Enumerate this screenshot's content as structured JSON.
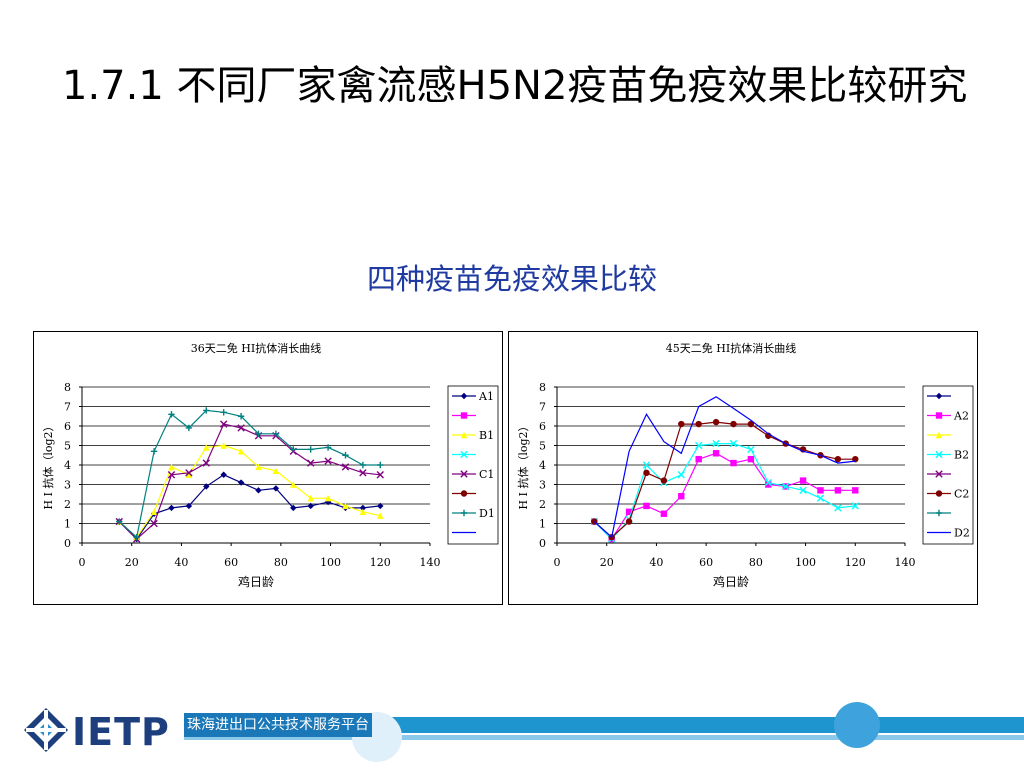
{
  "slide": {
    "title": "1.7.1  不同厂家禽流感H5N2疫苗免疫效果比较研究",
    "subtitle": "四种疫苗免疫效果比较"
  },
  "footer": {
    "logo": "IETP",
    "label": "珠海进出口公共技术服务平台"
  },
  "chart_data": [
    {
      "type": "line",
      "title": "36天二免 HI抗体消长曲线",
      "xlabel": "鸡日龄",
      "ylabel": "H I 抗体（log2）",
      "xlim": [
        0,
        140
      ],
      "ylim": [
        0,
        8
      ],
      "xticks": [
        0,
        20,
        40,
        60,
        80,
        100,
        120,
        140
      ],
      "yticks": [
        0,
        1,
        2,
        3,
        4,
        5,
        6,
        7,
        8
      ],
      "grid": "horizontal",
      "legend": "right",
      "legend_labels": [
        "A1",
        "",
        "B1",
        "",
        "C1",
        "",
        "D1",
        ""
      ],
      "series": [
        {
          "name": "A1",
          "color": "#000080",
          "marker": "diamond",
          "x": [
            15,
            22,
            29,
            36,
            43,
            50,
            57,
            64,
            71,
            78,
            85,
            92,
            99,
            106,
            113,
            120
          ],
          "y": [
            1.1,
            0.2,
            1.5,
            1.8,
            1.9,
            2.9,
            3.5,
            3.1,
            2.7,
            2.8,
            1.8,
            1.9,
            2.1,
            1.8,
            1.8,
            1.9
          ]
        },
        {
          "name": "",
          "color": "#ff00ff",
          "marker": "square",
          "x": [],
          "y": []
        },
        {
          "name": "B1",
          "color": "#ffff00",
          "marker": "triangle",
          "x": [
            15,
            22,
            29,
            36,
            43,
            50,
            57,
            64,
            71,
            78,
            85,
            92,
            99,
            106,
            113,
            120
          ],
          "y": [
            1.1,
            0.3,
            1.6,
            3.9,
            3.5,
            4.9,
            5.0,
            4.7,
            3.9,
            3.7,
            3.0,
            2.3,
            2.3,
            1.9,
            1.6,
            1.4
          ]
        },
        {
          "name": "",
          "color": "#00ffff",
          "marker": "x",
          "x": [],
          "y": []
        },
        {
          "name": "C1",
          "color": "#800080",
          "marker": "x",
          "x": [
            15,
            22,
            29,
            36,
            43,
            50,
            57,
            64,
            71,
            78,
            85,
            92,
            99,
            106,
            113,
            120
          ],
          "y": [
            1.1,
            0.2,
            1.0,
            3.5,
            3.6,
            4.1,
            6.1,
            5.9,
            5.5,
            5.5,
            4.7,
            4.1,
            4.2,
            3.9,
            3.6,
            3.5
          ]
        },
        {
          "name": "",
          "color": "#800000",
          "marker": "circle",
          "x": [],
          "y": []
        },
        {
          "name": "D1",
          "color": "#008080",
          "marker": "plus",
          "x": [
            15,
            22,
            29,
            36,
            43,
            50,
            57,
            64,
            71,
            78,
            85,
            92,
            99,
            106,
            113,
            120
          ],
          "y": [
            1.1,
            0.3,
            4.7,
            6.6,
            5.9,
            6.8,
            6.7,
            6.5,
            5.6,
            5.6,
            4.8,
            4.8,
            4.9,
            4.5,
            4.0,
            4.0
          ]
        },
        {
          "name": "",
          "color": "#0000ff",
          "marker": "none",
          "x": [],
          "y": []
        }
      ]
    },
    {
      "type": "line",
      "title": "45天二免 HI抗体消长曲线",
      "xlabel": "鸡日龄",
      "ylabel": "H I 抗体（log2）",
      "xlim": [
        0,
        140
      ],
      "ylim": [
        0,
        8
      ],
      "xticks": [
        0,
        20,
        40,
        60,
        80,
        100,
        120,
        140
      ],
      "yticks": [
        0,
        1,
        2,
        3,
        4,
        5,
        6,
        7,
        8
      ],
      "grid": "horizontal",
      "legend": "right",
      "legend_labels": [
        "",
        "A2",
        "",
        "B2",
        "",
        "C2",
        "",
        "D2"
      ],
      "series": [
        {
          "name": "",
          "color": "#000080",
          "marker": "diamond",
          "x": [],
          "y": []
        },
        {
          "name": "A2",
          "color": "#ff00ff",
          "marker": "square",
          "x": [
            15,
            22,
            29,
            36,
            43,
            50,
            57,
            64,
            71,
            78,
            85,
            92,
            99,
            106,
            113,
            120
          ],
          "y": [
            1.1,
            0.2,
            1.6,
            1.9,
            1.5,
            2.4,
            4.3,
            4.6,
            4.1,
            4.3,
            3.0,
            2.9,
            3.2,
            2.7,
            2.7,
            2.7
          ]
        },
        {
          "name": "",
          "color": "#ffff00",
          "marker": "triangle",
          "x": [],
          "y": []
        },
        {
          "name": "B2",
          "color": "#00ffff",
          "marker": "x",
          "x": [
            15,
            22,
            29,
            36,
            43,
            50,
            57,
            64,
            71,
            78,
            85,
            92,
            99,
            106,
            113,
            120
          ],
          "y": [
            1.1,
            0.2,
            1.2,
            4.0,
            3.1,
            3.5,
            5.0,
            5.1,
            5.1,
            4.8,
            3.1,
            2.9,
            2.7,
            2.3,
            1.8,
            1.9
          ]
        },
        {
          "name": "",
          "color": "#800080",
          "marker": "x",
          "x": [],
          "y": []
        },
        {
          "name": "C2",
          "color": "#800000",
          "marker": "circle",
          "x": [
            15,
            22,
            29,
            36,
            43,
            50,
            57,
            64,
            71,
            78,
            85,
            92,
            99,
            106,
            113,
            120
          ],
          "y": [
            1.1,
            0.3,
            1.1,
            3.6,
            3.2,
            6.1,
            6.1,
            6.2,
            6.1,
            6.1,
            5.5,
            5.1,
            4.8,
            4.5,
            4.3,
            4.3
          ]
        },
        {
          "name": "",
          "color": "#008080",
          "marker": "plus",
          "x": [],
          "y": []
        },
        {
          "name": "D2",
          "color": "#0000ff",
          "marker": "none",
          "x": [
            15,
            22,
            29,
            36,
            43,
            50,
            57,
            64,
            71,
            78,
            85,
            92,
            99,
            106,
            113,
            120
          ],
          "y": [
            1.1,
            0.3,
            4.7,
            6.6,
            5.2,
            4.6,
            7.0,
            7.5,
            6.9,
            6.3,
            5.6,
            5.1,
            4.7,
            4.5,
            4.1,
            4.2
          ]
        }
      ]
    }
  ]
}
